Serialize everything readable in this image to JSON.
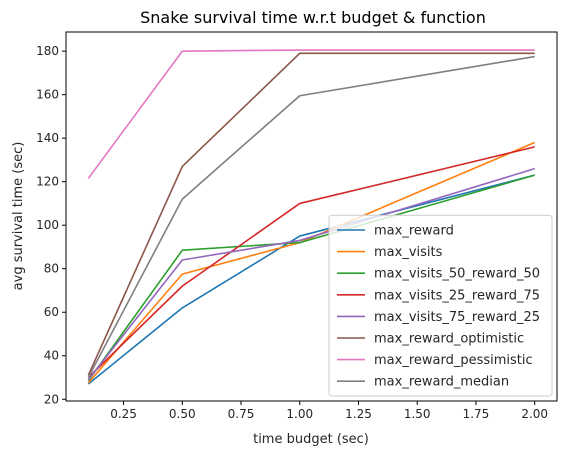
{
  "chart_data": {
    "type": "line",
    "title": "Snake survival time w.r.t budget & function",
    "xlabel": "time budget (sec)",
    "ylabel": "avg survival time (sec)",
    "x": [
      0.1,
      0.5,
      1.0,
      2.0
    ],
    "xlim": [
      0.005,
      2.095
    ],
    "ylim": [
      19.2,
      188.8
    ],
    "xticks": [
      0.25,
      0.5,
      0.75,
      1.0,
      1.25,
      1.5,
      1.75,
      2.0
    ],
    "xtick_labels": [
      "0.25",
      "0.50",
      "0.75",
      "1.00",
      "1.25",
      "1.50",
      "1.75",
      "2.00"
    ],
    "yticks": [
      20,
      40,
      60,
      80,
      100,
      120,
      140,
      160,
      180
    ],
    "ytick_labels": [
      "20",
      "40",
      "60",
      "80",
      "100",
      "120",
      "140",
      "160",
      "180"
    ],
    "grid": false,
    "legend_position": "lower-right",
    "series": [
      {
        "name": "max_reward",
        "color": "#1f77b4",
        "values": [
          27.0,
          62.0,
          95.0,
          123.0
        ]
      },
      {
        "name": "max_visits",
        "color": "#ff7f0e",
        "values": [
          27.5,
          77.5,
          92.0,
          138.0
        ]
      },
      {
        "name": "max_visits_50_reward_50",
        "color": "#2ca02c",
        "values": [
          28.5,
          88.5,
          92.0,
          123.0
        ]
      },
      {
        "name": "max_visits_25_reward_75",
        "color": "#d62728",
        "values": [
          30.0,
          72.0,
          110.0,
          136.0
        ]
      },
      {
        "name": "max_visits_75_reward_25",
        "color": "#9467bd",
        "values": [
          29.0,
          84.0,
          93.0,
          126.0
        ]
      },
      {
        "name": "max_reward_optimistic",
        "color": "#8c564b",
        "values": [
          31.0,
          127.0,
          179.0,
          179.0
        ]
      },
      {
        "name": "max_reward_pessimistic",
        "color": "#e377c2",
        "values": [
          121.5,
          180.0,
          180.5,
          180.5
        ]
      },
      {
        "name": "max_reward_median",
        "color": "#7f7f7f",
        "values": [
          30.0,
          112.0,
          159.5,
          177.5
        ]
      }
    ]
  }
}
